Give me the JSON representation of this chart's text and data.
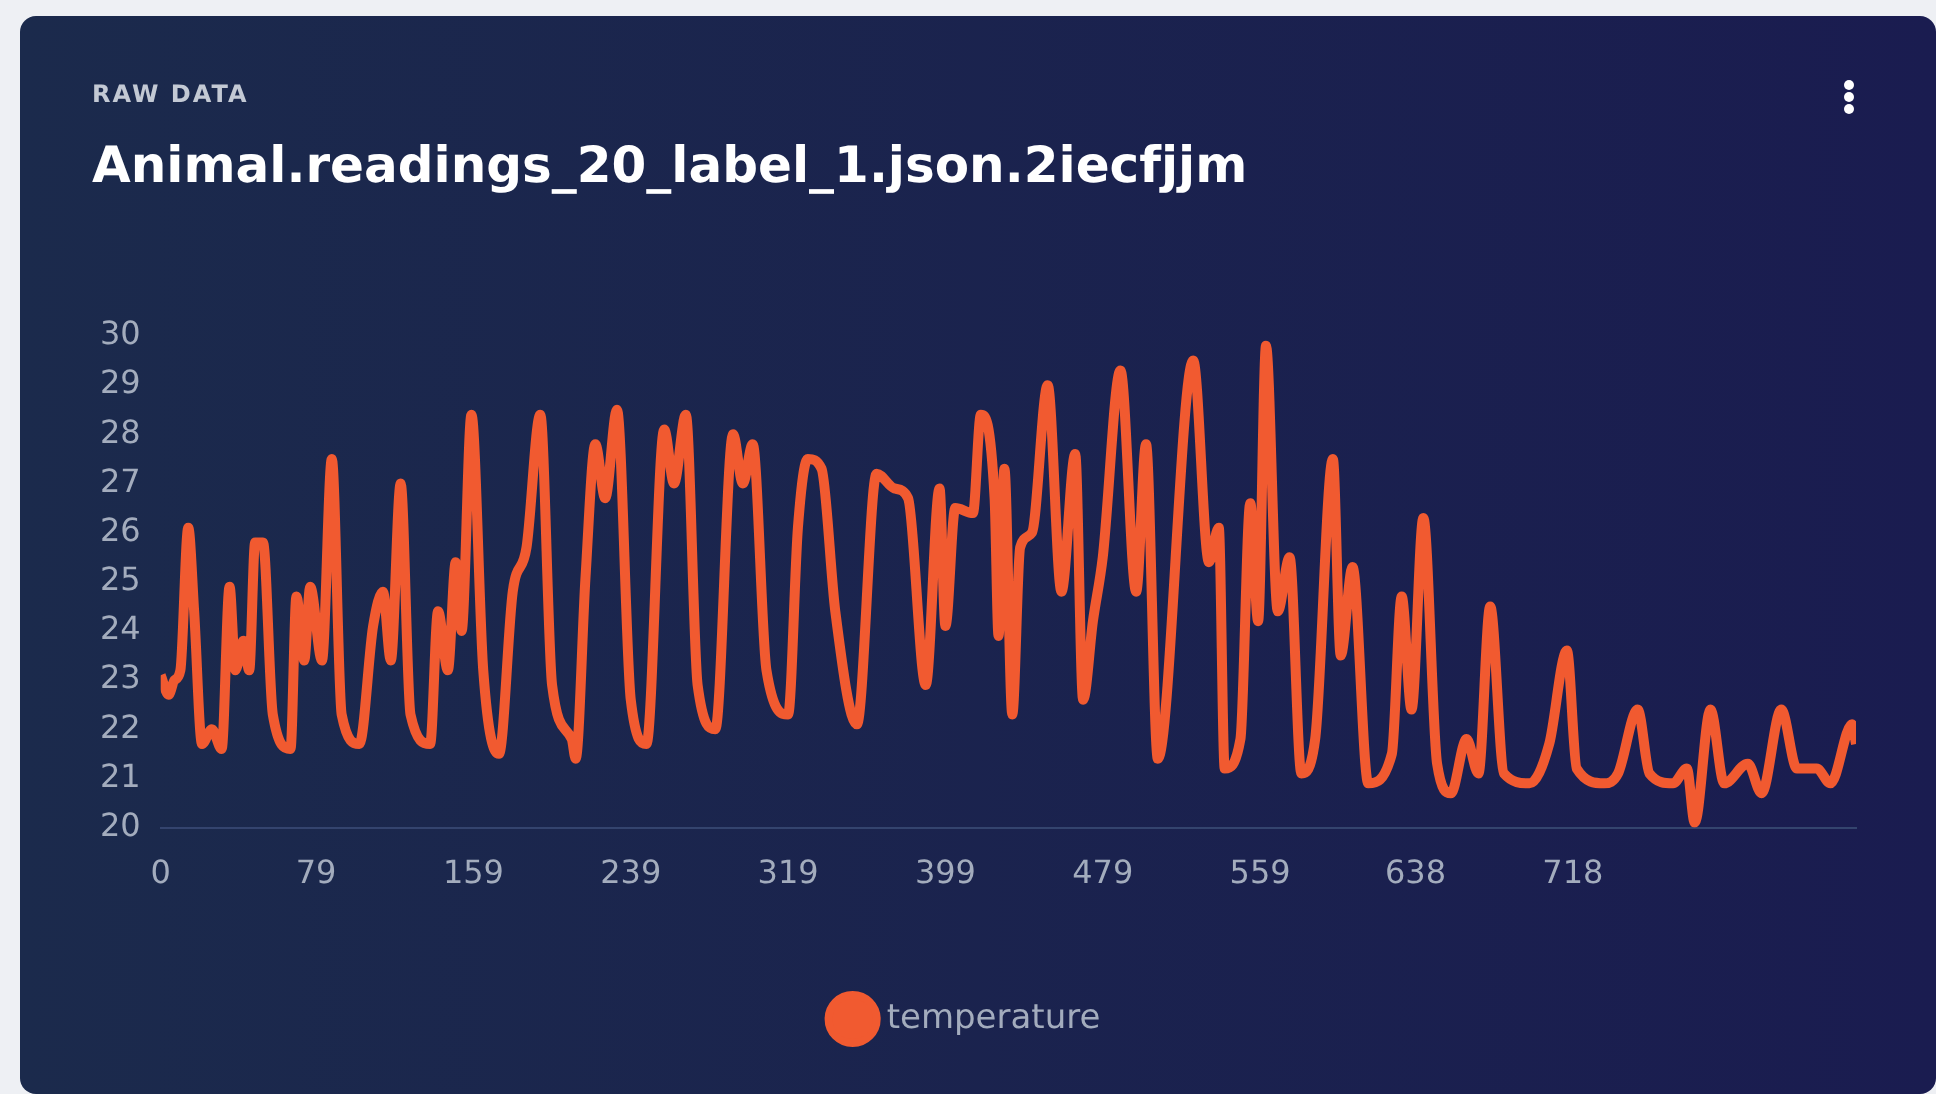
{
  "chart_data": {
    "type": "line",
    "subtitle": "RAW DATA",
    "title": "Animal.readings_20_label_1.json.2iecfjjm",
    "x": [
      0,
      4,
      7,
      10,
      14,
      17,
      21,
      26,
      31,
      35,
      38,
      42,
      45,
      48,
      52,
      57,
      66,
      69,
      73,
      76,
      82,
      87,
      92,
      101,
      108,
      113,
      117,
      122,
      127,
      137,
      141,
      146,
      150,
      153,
      158,
      164,
      172,
      179,
      186,
      193,
      199,
      209,
      211,
      216,
      221,
      226,
      232,
      239,
      247,
      256,
      261,
      267,
      273,
      282,
      291,
      296,
      301,
      308,
      319,
      324,
      329,
      336,
      343,
      354,
      364,
      373,
      380,
      389,
      396,
      399,
      404,
      413,
      417,
      424,
      426,
      429,
      433,
      437,
      443,
      451,
      458,
      465,
      469,
      474,
      479,
      488,
      496,
      501,
      507,
      525,
      533,
      538,
      541,
      549,
      554,
      558,
      562,
      568,
      574,
      580,
      587,
      596,
      600,
      606,
      614,
      626,
      631,
      636,
      642,
      649,
      656,
      664,
      670,
      676,
      683,
      696,
      706,
      715,
      720,
      734,
      741,
      751,
      757,
      769,
      776,
      780,
      788,
      795,
      807,
      814,
      824,
      832,
      842,
      849,
      860,
      862
    ],
    "series": [
      {
        "name": "temperature",
        "color": "#f15a30",
        "values": [
          23.1,
          22.7,
          23.0,
          23.2,
          26.1,
          24.4,
          21.7,
          22.0,
          21.6,
          24.9,
          23.2,
          23.8,
          23.2,
          25.8,
          25.8,
          22.3,
          21.6,
          24.7,
          23.4,
          24.9,
          23.4,
          27.5,
          22.3,
          21.7,
          24.1,
          24.8,
          23.4,
          27.0,
          22.3,
          21.7,
          24.4,
          23.2,
          25.4,
          24.0,
          28.4,
          23.2,
          21.5,
          24.8,
          25.7,
          28.4,
          22.9,
          21.8,
          21.4,
          25.1,
          27.8,
          26.7,
          28.5,
          22.6,
          21.7,
          28.1,
          27.0,
          28.4,
          22.9,
          22.0,
          28.0,
          27.0,
          27.8,
          23.2,
          22.3,
          26.1,
          27.5,
          27.3,
          24.4,
          22.1,
          27.2,
          26.9,
          26.7,
          22.9,
          26.9,
          24.1,
          26.5,
          26.4,
          28.4,
          26.7,
          23.9,
          27.3,
          22.3,
          25.7,
          26.0,
          29.0,
          24.8,
          27.6,
          22.6,
          24.2,
          25.5,
          29.3,
          24.8,
          27.8,
          21.4,
          29.5,
          25.4,
          26.1,
          21.2,
          21.8,
          26.6,
          24.2,
          29.8,
          24.4,
          25.5,
          21.1,
          21.8,
          27.5,
          23.5,
          25.3,
          20.9,
          21.5,
          24.7,
          22.4,
          26.3,
          21.3,
          20.7,
          21.8,
          21.1,
          24.5,
          21.1,
          20.9,
          21.7,
          23.6,
          21.2,
          20.9,
          21.1,
          22.4,
          21.1,
          20.9,
          21.2,
          20.1,
          22.4,
          20.9,
          21.3,
          20.7,
          22.4,
          21.2,
          21.2,
          20.9,
          22.1,
          21.7
        ]
      }
    ],
    "xlim": [
      0,
      862
    ],
    "xticks": [
      0,
      79,
      159,
      239,
      319,
      399,
      479,
      559,
      638,
      718
    ],
    "ylim": [
      20,
      30
    ],
    "yticks": [
      20,
      21,
      22,
      23,
      24,
      25,
      26,
      27,
      28,
      29,
      30
    ],
    "legend": "bottom"
  }
}
